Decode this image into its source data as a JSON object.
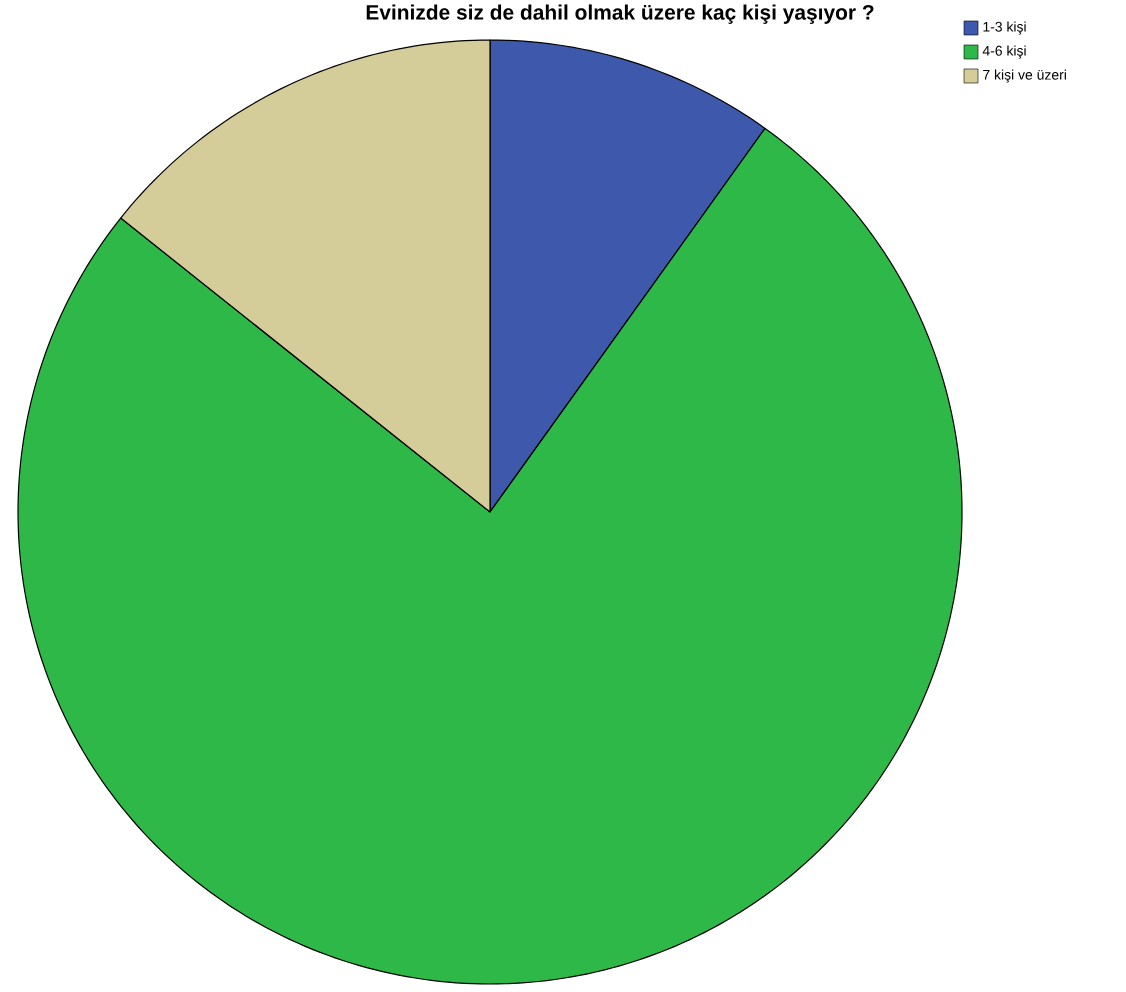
{
  "chart_data": {
    "type": "pie",
    "title": "Evinizde siz de dahil olmak üzere kaç kişi yaşıyor ?",
    "categories": [
      "1-3 kişi",
      "4-6 kişi",
      "7 kişi ve üzeri"
    ],
    "values": [
      9.9,
      75.8,
      14.3
    ],
    "colors": [
      "#3e58ac",
      "#2eb848",
      "#d4cc99"
    ],
    "legend": "top right"
  }
}
